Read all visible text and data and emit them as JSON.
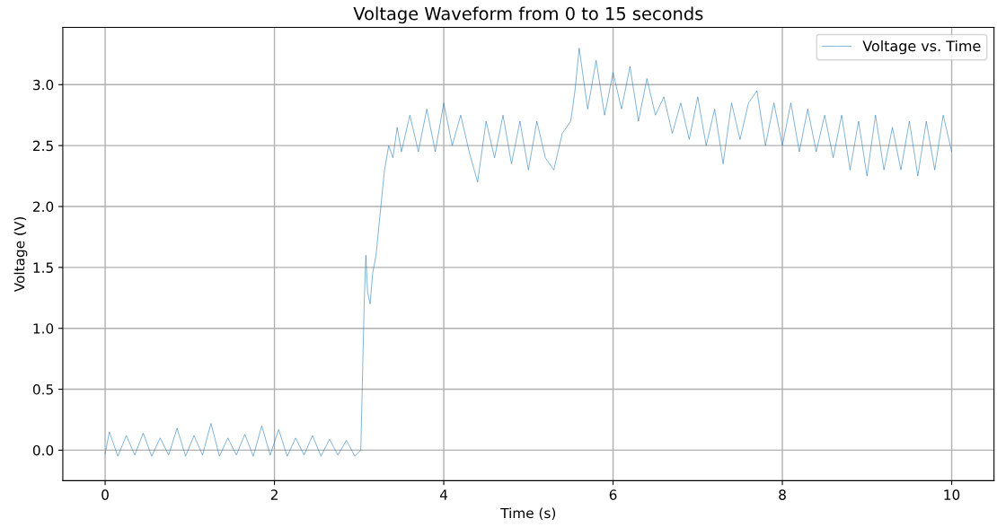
{
  "chart_data": {
    "type": "line",
    "title": "Voltage Waveform from 0 to 15 seconds",
    "xlabel": "Time (s)",
    "ylabel": "Voltage (V)",
    "series": [
      {
        "name": "Voltage vs. Time",
        "color": "#1f77b4",
        "x": [
          0,
          0.05,
          0.15,
          0.25,
          0.35,
          0.45,
          0.55,
          0.65,
          0.75,
          0.85,
          0.95,
          1.05,
          1.15,
          1.25,
          1.35,
          1.45,
          1.55,
          1.65,
          1.75,
          1.85,
          1.95,
          2.05,
          2.15,
          2.25,
          2.35,
          2.45,
          2.55,
          2.65,
          2.75,
          2.85,
          2.95,
          3.02,
          3.04,
          3.06,
          3.08,
          3.1,
          3.13,
          3.16,
          3.2,
          3.25,
          3.3,
          3.35,
          3.4,
          3.45,
          3.5,
          3.6,
          3.7,
          3.8,
          3.9,
          4.0,
          4.1,
          4.2,
          4.3,
          4.4,
          4.5,
          4.6,
          4.7,
          4.8,
          4.9,
          5.0,
          5.1,
          5.2,
          5.3,
          5.4,
          5.5,
          5.55,
          5.6,
          5.7,
          5.8,
          5.9,
          6.0,
          6.1,
          6.2,
          6.3,
          6.4,
          6.5,
          6.6,
          6.7,
          6.8,
          6.9,
          7.0,
          7.1,
          7.2,
          7.3,
          7.4,
          7.5,
          7.6,
          7.7,
          7.8,
          7.9,
          8.0,
          8.1,
          8.2,
          8.3,
          8.4,
          8.5,
          8.6,
          8.7,
          8.8,
          8.9,
          9.0,
          9.1,
          9.2,
          9.3,
          9.4,
          9.5,
          9.6,
          9.7,
          9.8,
          9.9,
          10.0
        ],
        "values": [
          -0.03,
          0.15,
          -0.05,
          0.12,
          -0.04,
          0.14,
          -0.05,
          0.1,
          -0.04,
          0.18,
          -0.05,
          0.12,
          -0.04,
          0.22,
          -0.05,
          0.1,
          -0.04,
          0.13,
          -0.05,
          0.2,
          -0.04,
          0.17,
          -0.05,
          0.1,
          -0.04,
          0.12,
          -0.05,
          0.09,
          -0.04,
          0.08,
          -0.05,
          0.0,
          0.6,
          1.2,
          1.6,
          1.3,
          1.2,
          1.45,
          1.6,
          1.95,
          2.3,
          2.5,
          2.4,
          2.65,
          2.45,
          2.75,
          2.45,
          2.8,
          2.45,
          2.85,
          2.5,
          2.75,
          2.45,
          2.2,
          2.7,
          2.4,
          2.75,
          2.35,
          2.7,
          2.3,
          2.7,
          2.4,
          2.3,
          2.6,
          2.7,
          2.95,
          3.3,
          2.8,
          3.2,
          2.75,
          3.1,
          2.8,
          3.15,
          2.7,
          3.05,
          2.75,
          2.9,
          2.6,
          2.85,
          2.55,
          2.9,
          2.5,
          2.8,
          2.35,
          2.85,
          2.55,
          2.85,
          2.95,
          2.5,
          2.85,
          2.5,
          2.85,
          2.45,
          2.8,
          2.45,
          2.75,
          2.4,
          2.75,
          2.3,
          2.7,
          2.25,
          2.75,
          2.3,
          2.65,
          2.3,
          2.7,
          2.25,
          2.7,
          2.3,
          2.75,
          2.45
        ]
      }
    ],
    "xlim": [
      -0.5,
      10.5
    ],
    "ylim": [
      -0.25,
      3.47
    ],
    "xticks": [
      0,
      2,
      4,
      6,
      8,
      10
    ],
    "yticks": [
      {
        "value": 0,
        "label": "0.0"
      },
      0.5,
      {
        "value": 1,
        "label": "1.0"
      },
      1.5,
      {
        "value": 2,
        "label": "2.0"
      },
      2.5,
      {
        "value": 3,
        "label": "3.0"
      }
    ],
    "grid": true,
    "legend": "top right",
    "line_style": "solid",
    "marker": "none"
  }
}
